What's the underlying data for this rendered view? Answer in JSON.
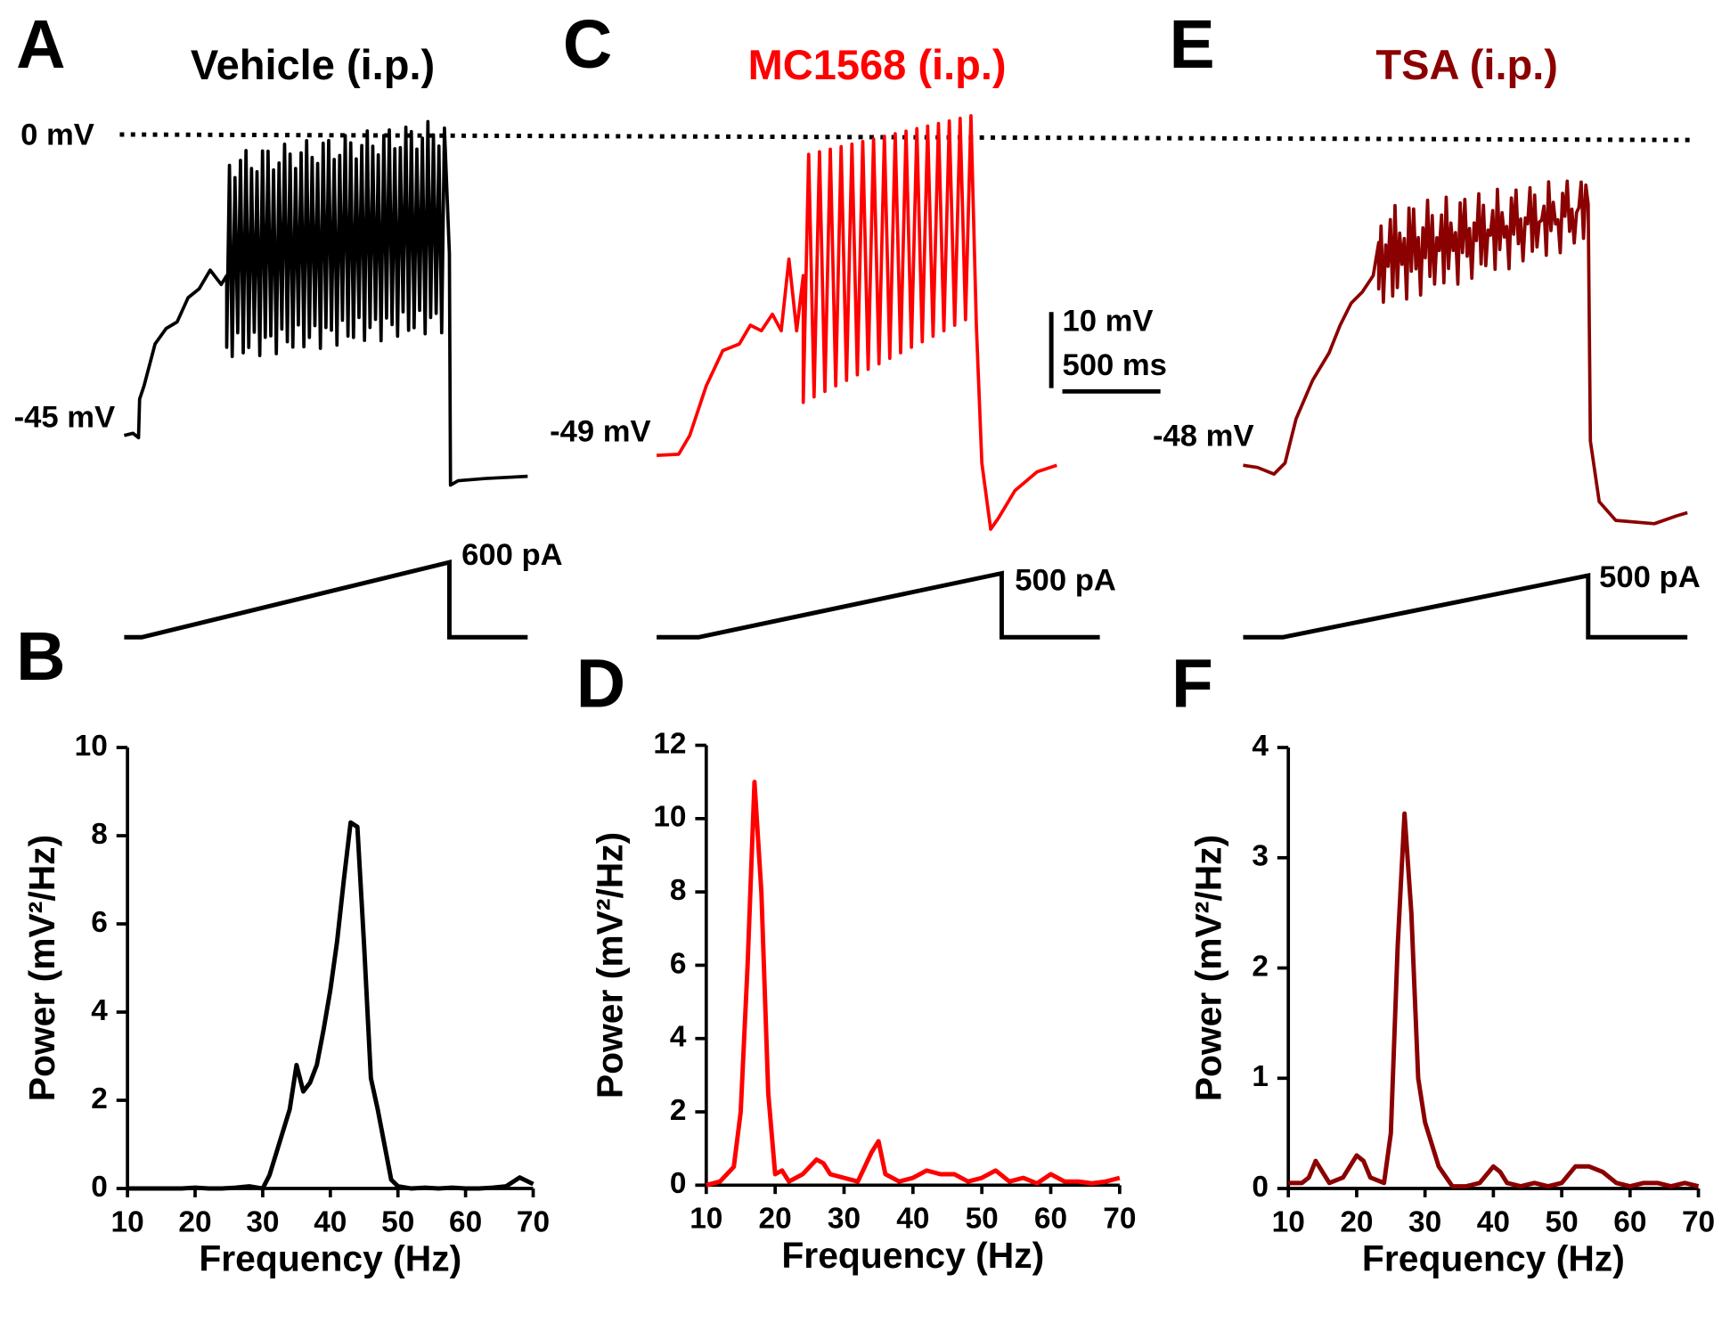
{
  "panels": [
    {
      "letter": "A",
      "title": "Vehicle (i.p.)",
      "rest": "-45 mV",
      "current": "600 pA"
    },
    {
      "letter": "C",
      "title": "MC1568 (i.p.)",
      "rest": "-49 mV",
      "current": "500 pA"
    },
    {
      "letter": "E",
      "title": "TSA (i.p.)",
      "rest": "-48 mV",
      "current": "500 pA"
    }
  ],
  "zero_label": "0 mV",
  "scale_bar": {
    "voltage": "10 mV",
    "time": "500 ms"
  },
  "chart_data": [
    {
      "type": "line",
      "letter": "B",
      "color": "#000000",
      "xlabel": "Frequency (Hz)",
      "ylabel": "Power (mV²/Hz)",
      "x": [
        10,
        12,
        14,
        16,
        18,
        20,
        22,
        24,
        26,
        28,
        30,
        31,
        32,
        33,
        34,
        35,
        36,
        37,
        38,
        39,
        40,
        41,
        42,
        43,
        44,
        45,
        46,
        47,
        48,
        49,
        50,
        52,
        54,
        56,
        58,
        60,
        62,
        64,
        66,
        68,
        70
      ],
      "values": [
        0,
        0,
        0,
        0,
        0,
        0.02,
        0,
        0,
        0.02,
        0.05,
        0,
        0.3,
        0.8,
        1.3,
        1.8,
        2.8,
        2.2,
        2.4,
        2.8,
        3.6,
        4.5,
        5.6,
        7.0,
        8.3,
        8.2,
        5.5,
        2.5,
        1.8,
        1.0,
        0.2,
        0.05,
        0,
        0.02,
        0,
        0.02,
        0,
        0,
        0.02,
        0.05,
        0.25,
        0.1
      ],
      "xlim": [
        10,
        70
      ],
      "xticks": [
        10,
        20,
        30,
        40,
        50,
        60,
        70
      ],
      "ylim": [
        0,
        10
      ],
      "yticks": [
        0,
        2,
        4,
        6,
        8,
        10
      ]
    },
    {
      "type": "line",
      "letter": "D",
      "color": "#ff0000",
      "xlabel": "Frequency (Hz)",
      "ylabel": "Power (mV²/Hz)",
      "x": [
        10,
        12,
        14,
        15,
        16,
        17,
        18,
        19,
        20,
        21,
        22,
        24,
        26,
        27,
        28,
        30,
        32,
        34,
        35,
        36,
        38,
        40,
        42,
        44,
        46,
        48,
        50,
        52,
        54,
        56,
        58,
        60,
        62,
        64,
        66,
        68,
        70
      ],
      "values": [
        0,
        0.1,
        0.5,
        2,
        6,
        11,
        8,
        2.5,
        0.3,
        0.4,
        0.1,
        0.3,
        0.7,
        0.6,
        0.3,
        0.2,
        0.1,
        0.9,
        1.2,
        0.3,
        0.1,
        0.2,
        0.4,
        0.3,
        0.3,
        0.1,
        0.2,
        0.4,
        0.1,
        0.2,
        0.05,
        0.3,
        0.1,
        0.1,
        0.05,
        0.1,
        0.2
      ],
      "xlim": [
        10,
        70
      ],
      "xticks": [
        10,
        20,
        30,
        40,
        50,
        60,
        70
      ],
      "ylim": [
        0,
        12
      ],
      "yticks": [
        0,
        2,
        4,
        6,
        8,
        10,
        12
      ]
    },
    {
      "type": "line",
      "letter": "F",
      "color": "#8b0000",
      "xlabel": "Frequency (Hz)",
      "ylabel": "Power (mV²/Hz)",
      "x": [
        10,
        12,
        13,
        14,
        15,
        16,
        18,
        20,
        21,
        22,
        24,
        25,
        26,
        27,
        28,
        29,
        30,
        31,
        32,
        34,
        36,
        38,
        40,
        41,
        42,
        44,
        46,
        48,
        50,
        52,
        54,
        56,
        58,
        60,
        62,
        64,
        66,
        68,
        70
      ],
      "values": [
        0.05,
        0.05,
        0.1,
        0.25,
        0.15,
        0.05,
        0.1,
        0.3,
        0.25,
        0.1,
        0.05,
        0.5,
        2.2,
        3.4,
        2.5,
        1.0,
        0.6,
        0.4,
        0.2,
        0.02,
        0.02,
        0.05,
        0.2,
        0.15,
        0.05,
        0.02,
        0.05,
        0.02,
        0.05,
        0.2,
        0.2,
        0.15,
        0.05,
        0.02,
        0.05,
        0.05,
        0.02,
        0.05,
        0.02
      ],
      "xlim": [
        10,
        70
      ],
      "xticks": [
        10,
        20,
        30,
        40,
        50,
        60,
        70
      ],
      "ylim": [
        0,
        4
      ],
      "yticks": [
        0,
        1,
        2,
        3,
        4
      ]
    }
  ]
}
